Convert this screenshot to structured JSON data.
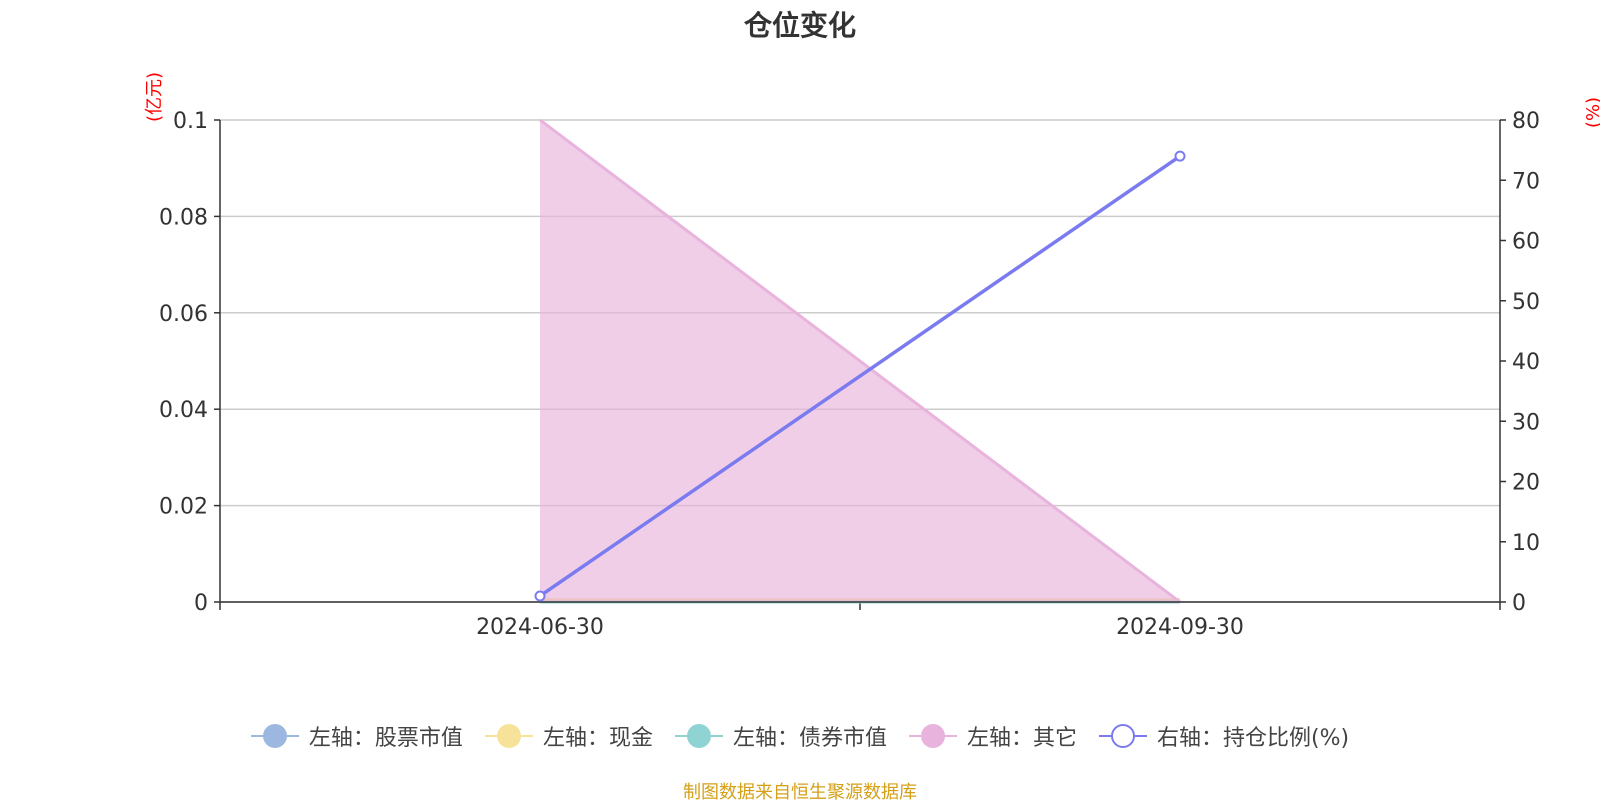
{
  "chart_data": {
    "type": "area",
    "title": "仓位变化",
    "left_unit": "(亿元)",
    "right_unit": "(%)",
    "categories": [
      "2024-06-30",
      "2024-09-30"
    ],
    "left_axis": {
      "ylim": [
        0,
        0.1
      ],
      "ticks": [
        "0",
        "0.02",
        "0.04",
        "0.06",
        "0.08",
        "0.1"
      ]
    },
    "right_axis": {
      "ylim": [
        0,
        80
      ],
      "ticks": [
        "0",
        "10",
        "20",
        "30",
        "40",
        "50",
        "60",
        "70",
        "80"
      ]
    },
    "grid": true,
    "legend_position": "bottom",
    "series": [
      {
        "name": "左轴：股票市值",
        "axis": "left",
        "kind": "area",
        "color": "#9db8e0",
        "values": [
          0,
          0
        ]
      },
      {
        "name": "左轴：现金",
        "axis": "left",
        "kind": "area",
        "color": "#f7e29a",
        "values": [
          0.0005,
          0.0005
        ]
      },
      {
        "name": "左轴：债券市值",
        "axis": "left",
        "kind": "area",
        "color": "#8fd3d3",
        "values": [
          0,
          0
        ]
      },
      {
        "name": "左轴：其它",
        "axis": "left",
        "kind": "area",
        "color": "#e8b3dc",
        "values": [
          0.1,
          0
        ]
      },
      {
        "name": "右轴：持仓比例(%)",
        "axis": "right",
        "kind": "line",
        "color": "#7b7bf0",
        "values": [
          1,
          74
        ]
      }
    ],
    "source": "制图数据来自恒生聚源数据库"
  }
}
